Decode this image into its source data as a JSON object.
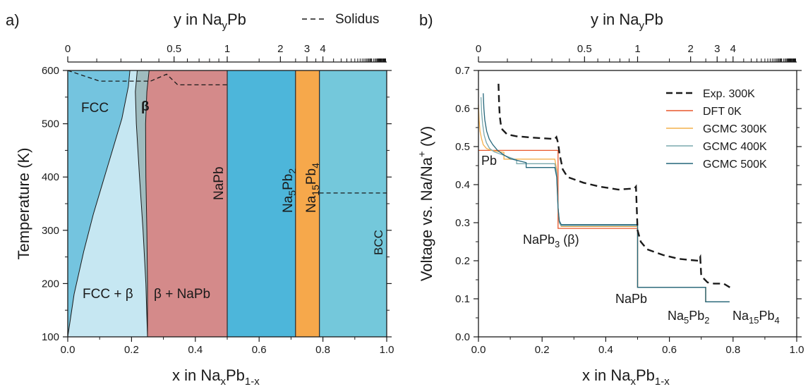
{
  "panel_a": {
    "panel_label": "a)",
    "top_axis_title": "y in Na",
    "top_axis_sub": "y",
    "top_axis_tail": "Pb",
    "legend_label": "Solidus",
    "bottom_axis_title": "x in Na",
    "bottom_axis_sub1": "x",
    "bottom_axis_mid": "Pb",
    "bottom_axis_sub2": "1-x",
    "ylabel": "Temperature (K)",
    "phase_labels": {
      "fcc": "FCC",
      "beta": "β",
      "fcc_beta": "FCC + β",
      "beta_napb": "β + NaPb",
      "napb": "NaPb",
      "na5pb2": [
        "Na",
        "5",
        "Pb",
        "2"
      ],
      "na15pb4": [
        "Na",
        "15",
        "Pb",
        "4"
      ],
      "bcc": "BCC"
    }
  },
  "panel_b": {
    "panel_label": "b)",
    "top_axis_title": "y in Na",
    "top_axis_sub": "y",
    "top_axis_tail": "Pb",
    "bottom_axis_title": "x in Na",
    "bottom_axis_sub1": "x",
    "bottom_axis_mid": "Pb",
    "bottom_axis_sub2": "1-x",
    "ylabel_main": "Voltage vs. Na/Na",
    "ylabel_sup": "+",
    "ylabel_tail": " (V)",
    "annotations": {
      "pb": "Pb",
      "napb3": [
        "NaPb",
        "3",
        " (β)"
      ],
      "napb": "NaPb",
      "na5pb2": [
        "Na",
        "5",
        "Pb",
        "2"
      ],
      "na15pb4": [
        "Na",
        "15",
        "Pb",
        "4"
      ]
    }
  },
  "chart_data": [
    {
      "type": "area",
      "title": "",
      "xlabel": "x in NaxPb1-x",
      "ylabel": "Temperature (K)",
      "top_xlabel": "y in NayPb",
      "xlim": [
        0.0,
        1.0
      ],
      "ylim": [
        100,
        600
      ],
      "x_ticks": [
        "0.0",
        "0.2",
        "0.4",
        "0.6",
        "0.8",
        "1.0"
      ],
      "y_ticks": [
        "100",
        "200",
        "300",
        "400",
        "500",
        "600"
      ],
      "top_ticks": [
        "0",
        "0.5",
        "1",
        "2",
        "3",
        "4"
      ],
      "top_tick_y_values": [
        0,
        0.5,
        1,
        2,
        3,
        4
      ],
      "regions": [
        {
          "name": "FCC",
          "color": "#74c4df"
        },
        {
          "name": "FCC + β",
          "color": "#c6e7f2"
        },
        {
          "name": "β",
          "color": "#9fbcbf"
        },
        {
          "name": "β + NaPb",
          "color": "#d48a8a"
        },
        {
          "name": "NaPb / Na5Pb2",
          "x_range": [
            0.5,
            0.714
          ],
          "color": "#4db6da"
        },
        {
          "name": "Na15Pb4",
          "x_range": [
            0.714,
            0.789
          ],
          "color": "#f6a84b"
        },
        {
          "name": "BCC",
          "x_range": [
            0.789,
            1.0
          ],
          "color": "#74c8db"
        }
      ],
      "phase_lines_x": [
        0.5,
        0.714,
        0.789
      ],
      "fcc_boundary": {
        "x": [
          0.0,
          0.02,
          0.05,
          0.08,
          0.11,
          0.14,
          0.17,
          0.19,
          0.195
        ],
        "T": [
          100,
          180,
          260,
          330,
          390,
          450,
          510,
          570,
          600
        ]
      },
      "beta_left_boundary": {
        "x": [
          0.25,
          0.245,
          0.236,
          0.225,
          0.215,
          0.212,
          0.218
        ],
        "T": [
          100,
          200,
          300,
          400,
          500,
          560,
          600
        ]
      },
      "beta_right_boundary": {
        "x": [
          0.25,
          0.25,
          0.248,
          0.245,
          0.244,
          0.248,
          0.255
        ],
        "T": [
          100,
          200,
          300,
          400,
          500,
          560,
          600
        ]
      },
      "series": [
        {
          "name": "Solidus",
          "style": "dashed",
          "x": [
            0.0,
            0.1,
            0.2,
            0.26,
            0.31,
            0.345,
            0.5
          ],
          "y": [
            600,
            580,
            580,
            580,
            593,
            573,
            573
          ]
        },
        {
          "name": "BCC boundary",
          "style": "dashed",
          "x": [
            0.789,
            1.0
          ],
          "y": [
            370,
            370
          ]
        }
      ]
    },
    {
      "type": "line",
      "title": "",
      "xlabel": "x in NaxPb1-x",
      "ylabel": "Voltage vs. Na/Na+ (V)",
      "top_xlabel": "y in NayPb",
      "xlim": [
        0.0,
        1.0
      ],
      "ylim": [
        0.0,
        0.7
      ],
      "x_ticks": [
        "0.0",
        "0.2",
        "0.4",
        "0.6",
        "0.8",
        "1.0"
      ],
      "y_ticks": [
        "0.0",
        "0.1",
        "0.2",
        "0.3",
        "0.4",
        "0.5",
        "0.6",
        "0.7"
      ],
      "top_ticks": [
        "0",
        "0.5",
        "1",
        "2",
        "3",
        "4"
      ],
      "top_tick_y_values": [
        0,
        0.5,
        1,
        2,
        3,
        4
      ],
      "legend_position": "top-right",
      "series": [
        {
          "name": "Exp. 300K",
          "color": "#1a1a1a",
          "style": "dashed",
          "x": [
            0.063,
            0.065,
            0.067,
            0.07,
            0.075,
            0.09,
            0.12,
            0.18,
            0.24,
            0.245,
            0.25,
            0.255,
            0.265,
            0.28,
            0.33,
            0.38,
            0.44,
            0.49,
            0.495,
            0.5,
            0.51,
            0.53,
            0.58,
            0.63,
            0.69,
            0.697,
            0.7,
            0.72,
            0.74,
            0.77,
            0.79
          ],
          "y": [
            0.665,
            0.61,
            0.58,
            0.56,
            0.545,
            0.532,
            0.527,
            0.523,
            0.52,
            0.525,
            0.51,
            0.48,
            0.44,
            0.42,
            0.405,
            0.395,
            0.387,
            0.39,
            0.395,
            0.28,
            0.25,
            0.23,
            0.215,
            0.205,
            0.2,
            0.21,
            0.16,
            0.143,
            0.14,
            0.14,
            0.13
          ]
        },
        {
          "name": "DFT 0K",
          "color": "#e8572b",
          "style": "solid",
          "x": [
            0.0,
            0.25,
            0.25,
            0.5,
            0.5,
            0.714,
            0.714,
            0.789
          ],
          "y": [
            0.49,
            0.49,
            0.285,
            0.285,
            0.13,
            0.13,
            0.092,
            0.092
          ]
        },
        {
          "name": "GCMC 300K",
          "color": "#f3b04c",
          "style": "solid",
          "x": [
            0.0,
            0.002,
            0.005,
            0.01,
            0.015,
            0.025,
            0.04,
            0.06,
            0.08,
            0.08,
            0.24,
            0.246,
            0.25,
            0.254,
            0.26,
            0.5,
            0.5,
            0.714,
            0.714,
            0.789
          ],
          "y": [
            0.61,
            0.57,
            0.54,
            0.52,
            0.505,
            0.495,
            0.49,
            0.487,
            0.485,
            0.467,
            0.467,
            0.44,
            0.34,
            0.3,
            0.29,
            0.29,
            0.13,
            0.13,
            0.092,
            0.092
          ]
        },
        {
          "name": "GCMC 400K",
          "color": "#7aa8ad",
          "style": "solid",
          "x": [
            0.008,
            0.01,
            0.013,
            0.018,
            0.025,
            0.035,
            0.05,
            0.07,
            0.12,
            0.12,
            0.24,
            0.246,
            0.25,
            0.254,
            0.26,
            0.5,
            0.5,
            0.714,
            0.714,
            0.789
          ],
          "y": [
            0.63,
            0.59,
            0.56,
            0.53,
            0.51,
            0.495,
            0.486,
            0.48,
            0.465,
            0.455,
            0.455,
            0.43,
            0.34,
            0.3,
            0.292,
            0.292,
            0.13,
            0.13,
            0.092,
            0.092
          ]
        },
        {
          "name": "GCMC 500K",
          "color": "#24667a",
          "style": "solid",
          "x": [
            0.015,
            0.017,
            0.02,
            0.026,
            0.034,
            0.045,
            0.06,
            0.08,
            0.1,
            0.15,
            0.15,
            0.24,
            0.246,
            0.25,
            0.254,
            0.26,
            0.5,
            0.5,
            0.714,
            0.714,
            0.789
          ],
          "y": [
            0.64,
            0.6,
            0.57,
            0.54,
            0.52,
            0.505,
            0.49,
            0.478,
            0.468,
            0.458,
            0.445,
            0.445,
            0.42,
            0.34,
            0.305,
            0.295,
            0.295,
            0.13,
            0.13,
            0.092,
            0.092
          ]
        }
      ]
    }
  ]
}
